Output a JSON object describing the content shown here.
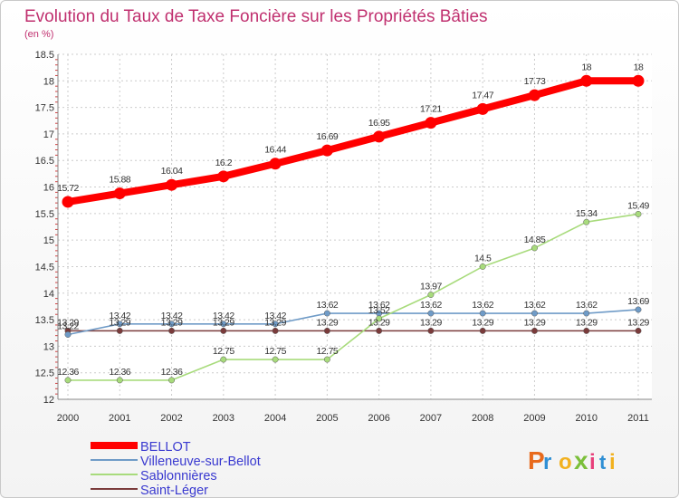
{
  "chart_data": {
    "type": "line",
    "title": "Evolution du Taux de Taxe Foncière sur les Propriétés Bâties",
    "subtitle": "(en %)",
    "xlabel": "",
    "ylabel": "",
    "ylim": [
      12,
      18.5
    ],
    "yticks": [
      "12",
      "12.5",
      "13",
      "13.5",
      "14",
      "14.5",
      "15",
      "15.5",
      "16",
      "16.5",
      "17",
      "17.5",
      "18",
      "18.5"
    ],
    "x": [
      "2000",
      "2001",
      "2002",
      "2003",
      "2004",
      "2005",
      "2006",
      "2007",
      "2008",
      "2009",
      "2010",
      "2011"
    ],
    "series": [
      {
        "name": "BELLOT",
        "color": "#ff0000",
        "values": [
          15.72,
          15.88,
          16.04,
          16.2,
          16.44,
          16.69,
          16.95,
          17.21,
          17.47,
          17.73,
          18,
          18
        ],
        "labels": [
          "15.72",
          "15.88",
          "16.04",
          "16.2",
          "16.44",
          "16.69",
          "16.95",
          "17.21",
          "17.47",
          "17.73",
          "18",
          "18"
        ]
      },
      {
        "name": "Villeneuve-sur-Bellot",
        "color": "#6f9bc7",
        "values": [
          13.22,
          13.42,
          13.42,
          13.42,
          13.42,
          13.62,
          13.62,
          13.62,
          13.62,
          13.62,
          13.62,
          13.69
        ],
        "labels": [
          "13.22",
          "13.42",
          "13.42",
          "13.42",
          "13.42",
          "13.62",
          "13.62",
          "13.62",
          "13.62",
          "13.62",
          "13.62",
          "13.69"
        ]
      },
      {
        "name": "Sablonnières",
        "color": "#a8db7c",
        "values": [
          12.36,
          12.36,
          12.36,
          12.75,
          12.75,
          12.75,
          13.52,
          13.97,
          14.5,
          14.85,
          15.34,
          15.49
        ],
        "labels": [
          "12.36",
          "12.36",
          "12.36",
          "12.75",
          "12.75",
          "12.75",
          "13.52",
          "13.97",
          "14.5",
          "14.85",
          "15.34",
          "15.49"
        ]
      },
      {
        "name": "Saint-Léger",
        "color": "#7a3b3b",
        "values": [
          13.29,
          13.29,
          13.29,
          13.29,
          13.29,
          13.29,
          13.29,
          13.29,
          13.29,
          13.29,
          13.29,
          13.29
        ],
        "labels": [
          "13.29",
          "13.29",
          "13.29",
          "13.29",
          "13.29",
          "13.29",
          "13.29",
          "13.29",
          "13.29",
          "13.29",
          "13.29",
          "13.29"
        ]
      }
    ],
    "legend_position": "bottom-left",
    "title_color": "#c0306f",
    "logo_text": "Proxiti",
    "logo_colors": [
      "#e86a1c",
      "#2f8fd4",
      "#f2b11f",
      "#7bbf3a",
      "#e83f7a",
      "#2f8fd4",
      "#f2b11f"
    ]
  }
}
